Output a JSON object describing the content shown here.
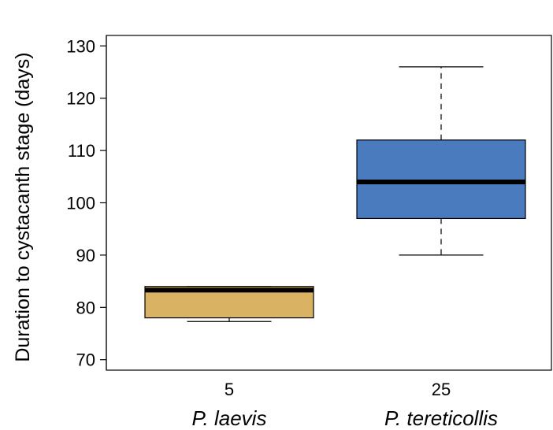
{
  "chart_data": {
    "type": "box",
    "title": "",
    "xlabel": "",
    "ylabel": "Duration to cystacanth stage (days)",
    "ylim": [
      68,
      132
    ],
    "yticks": [
      70,
      80,
      90,
      100,
      110,
      120,
      130
    ],
    "grid": false,
    "categories": [
      "P. laevis",
      "P. tereticollis"
    ],
    "sample_sizes": [
      "5",
      "25"
    ],
    "boxes": [
      {
        "category": "P. laevis",
        "whisker_low": 77.3,
        "q1": 78,
        "median": 83.3,
        "q3": 84,
        "whisker_high": 84,
        "fill": "#D9B263"
      },
      {
        "category": "P. tereticollis",
        "whisker_low": 90,
        "q1": 97,
        "median": 104,
        "q3": 112,
        "whisker_high": 126,
        "fill": "#4A7BBF"
      }
    ]
  }
}
